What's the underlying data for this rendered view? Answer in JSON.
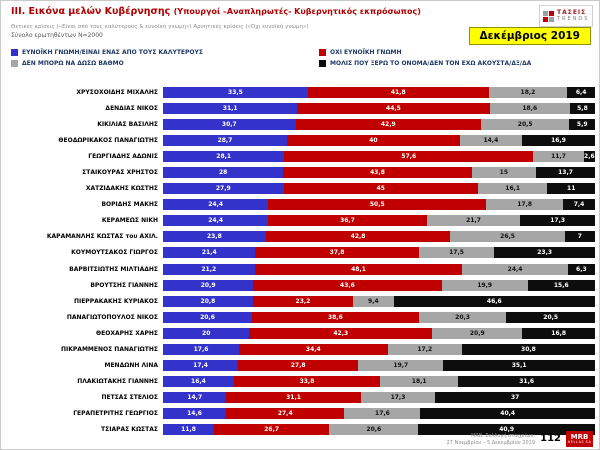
{
  "slide": {
    "title": "III. Εικόνα μελών Κυβέρνησης",
    "title_paren": "(Υπουργοί –Αναπληρωτές- Κυβερνητικός εκπρόσωπος)",
    "subtitle": "Θετικές κρίσεις («Είναι από τους καλύτερους & ευνοϊκή γνώμη»)  Αρνητικές κρίσεις («Όχι ευνοϊκή γνώμη»)",
    "sample": "Σύνολο ερωτηθέντων Ν=2000",
    "date_badge": "Δεκέμβριος 2019",
    "logo_top_line1": "ΤΑΣΕΙΣ",
    "logo_top_line2": "TRENDS",
    "footer_line1": "MRB, Συλλογή στοιχείων:",
    "footer_line2": "27 Νοεμβρίου – 5 Δεκεμβρίου 2019",
    "page_number": "112",
    "logo_mrb": "MRB",
    "logo_mrb_sub": "HELLAS SA"
  },
  "chart_data": {
    "type": "bar",
    "orientation": "horizontal-stacked",
    "xlim": [
      0,
      100
    ],
    "value_format": "comma-decimal-percent",
    "categories": [
      "ΧΡΥΣΟΧΟΪΔΗΣ ΜΙΧΑΛΗΣ",
      "ΔΕΝΔΙΑΣ ΝΙΚΟΣ",
      "ΚΙΚΙΛΙΑΣ ΒΑΣΙΛΗΣ",
      "ΘΕΟΔΩΡΙΚΑΚΟΣ ΠΑΝΑΓΙΩΤΗΣ",
      "ΓΕΩΡΓΙΑΔΗΣ ΑΔΩΝΙΣ",
      "ΣΤΑΪΚΟΥΡΑΣ ΧΡΗΣΤΟΣ",
      "ΧΑΤΖΙΔΑΚΗΣ ΚΩΣΤΗΣ",
      "ΒΟΡΙΔΗΣ ΜΑΚΗΣ",
      "ΚΕΡΑΜΕΩΣ ΝΙΚΗ",
      "ΚΑΡΑΜΑΝΛΗΣ ΚΩΣΤΑΣ του ΑΧΙΛ.",
      "ΚΟΥΜΟΥΤΣΑΚΟΣ ΓΙΩΡΓΟΣ",
      "ΒΑΡΒΙΤΣΙΩΤΗΣ ΜΙΛΤΙΑΔΗΣ",
      "ΒΡΟΥΤΣΗΣ ΓΙΑΝΝΗΣ",
      "ΠΙΕΡΡΑΚΑΚΗΣ ΚΥΡΙΑΚΟΣ",
      "ΠΑΝΑΓΙΩΤΟΠΟΥΛΟΣ ΝΙΚΟΣ",
      "ΘΕΟΧΑΡΗΣ ΧΑΡΗΣ",
      "ΠΙΚΡΑΜΜΕΝΟΣ ΠΑΝΑΓΙΩΤΗΣ",
      "ΜΕΝΔΩΝΗ ΛΙΝΑ",
      "ΠΛΑΚΙΩΤΑΚΗΣ ΓΙΑΝΝΗΣ",
      "ΠΕΤΣΑΣ ΣΤΕΛΙΟΣ",
      "ΓΕΡΑΠΕΤΡΙΤΗΣ ΓΕΩΡΓΙΟΣ",
      "ΤΣΙΑΡΑΣ ΚΩΣΤΑΣ"
    ],
    "series": [
      {
        "key": "favorable",
        "name": "ΕΥΝΟΪΚΗ ΓΝΩΜΗ/ΕΙΝΑΙ ΕΝΑΣ ΑΠΟ ΤΟΥΣ ΚΑΛΥΤΕΡΟΥΣ",
        "color": "#3333cc",
        "text_color": "#ffffff",
        "values": [
          33.5,
          31.1,
          30.7,
          28.7,
          28.1,
          28,
          27.9,
          24.4,
          24.4,
          23.8,
          21.4,
          21.2,
          20.9,
          20.8,
          20.6,
          20,
          17.6,
          17.4,
          16.4,
          14.7,
          14.6,
          11.8
        ]
      },
      {
        "key": "unfavorable",
        "name": "ΟΧΙ ΕΥΝΟΪΚΗ ΓΝΩΜΗ",
        "color": "#c00000",
        "text_color": "#ffffff",
        "values": [
          41.8,
          44.5,
          42.9,
          40,
          57.6,
          43.8,
          45,
          50.5,
          36.7,
          42.8,
          37.8,
          48.1,
          43.6,
          23.2,
          38.6,
          42.3,
          34.4,
          27.8,
          33.8,
          31.1,
          27.4,
          26.7
        ]
      },
      {
        "key": "no-rating",
        "name": "ΔΕΝ ΜΠΟΡΩ ΝΑ ΔΩΣΩ ΒΑΘΜΟ",
        "color": "#a6a6a6",
        "text_color": "#111111",
        "values": [
          18.2,
          18.6,
          20.5,
          14.4,
          11.7,
          15,
          16.1,
          17.8,
          21.7,
          26.5,
          17.5,
          24.4,
          19.9,
          9.4,
          20.3,
          20.9,
          17.2,
          19.7,
          18.1,
          17.3,
          17.6,
          20.6
        ]
      },
      {
        "key": "unknown",
        "name": "ΜΟΛΙΣ ΠΟΥ ΞΕΡΩ ΤΟ ΟΝΟΜΑ/ΔΕΝ ΤΟΝ ΕΧΩ ΑΚΟΥΣΤΑ/ΔΞ/ΔΑ",
        "color": "#0d0d0d",
        "text_color": "#ffffff",
        "values": [
          6.4,
          5.8,
          5.9,
          16.9,
          2.6,
          13.7,
          11,
          7.4,
          17.3,
          7,
          23.3,
          6.3,
          15.6,
          46.6,
          20.5,
          16.8,
          30.8,
          35.1,
          31.6,
          37,
          40.4,
          40.9
        ]
      }
    ]
  }
}
